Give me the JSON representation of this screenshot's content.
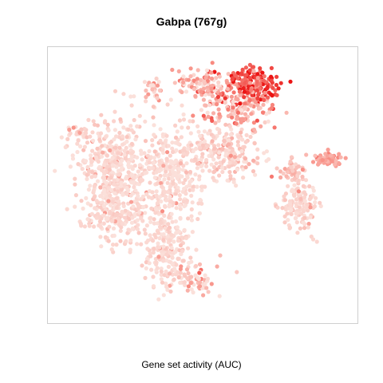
{
  "header": {
    "title": "Gabpa (767g)"
  },
  "footer": {
    "xlabel": "Gene set activity (AUC)"
  },
  "chart_data": {
    "type": "scatter",
    "title": "Gabpa (767g)",
    "xlabel": "Gene set activity (AUC)",
    "ylabel": "",
    "axes_visible": false,
    "grid": false,
    "legend": "none",
    "color_scale": {
      "low": "#fbe3dd",
      "high": "#cc0000",
      "description": "AUC gene set activity, light pink (low) to dark red (high)"
    },
    "clusters": [
      {
        "name": "top-right-high",
        "x": [
          0.0,
          0.2
        ],
        "y": [
          0.6,
          0.9
        ],
        "activity": "high"
      },
      {
        "name": "right-arm",
        "x": [
          0.3,
          0.4
        ],
        "y": [
          0.2,
          0.35
        ],
        "activity": "medium"
      },
      {
        "name": "main-body",
        "x": [
          -0.45,
          0.1
        ],
        "y": [
          -0.5,
          0.45
        ],
        "activity": "low"
      },
      {
        "name": "bottom-lobe",
        "x": [
          -0.2,
          0.0
        ],
        "y": [
          -0.9,
          -0.55
        ],
        "activity": "low"
      }
    ]
  }
}
